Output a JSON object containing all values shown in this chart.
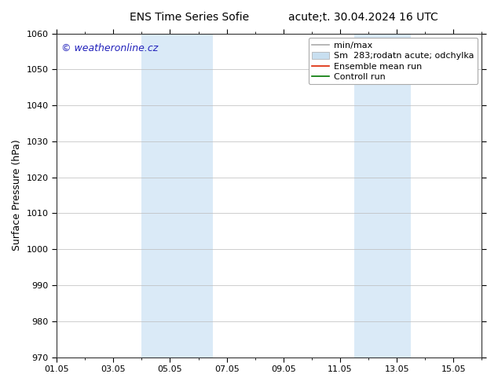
{
  "title_left": "ENS Time Series Sofie",
  "title_right": "acute;t. 30.04.2024 16 UTC",
  "ylabel": "Surface Pressure (hPa)",
  "watermark": "© weatheronline.cz",
  "ylim": [
    970,
    1060
  ],
  "yticks": [
    970,
    980,
    990,
    1000,
    1010,
    1020,
    1030,
    1040,
    1050,
    1060
  ],
  "xtick_labels": [
    "01.05",
    "03.05",
    "05.05",
    "07.05",
    "09.05",
    "11.05",
    "13.05",
    "15.05"
  ],
  "xtick_positions": [
    0,
    2,
    4,
    6,
    8,
    10,
    12,
    14
  ],
  "xlim": [
    0,
    15
  ],
  "shaded_bands": [
    {
      "start": 3.0,
      "end": 5.5,
      "color": "#daeaf7"
    },
    {
      "start": 10.5,
      "end": 12.5,
      "color": "#daeaf7"
    }
  ],
  "legend_entries": [
    {
      "label": "min/max",
      "color": "#aaaaaa",
      "lw": 1.2,
      "type": "line"
    },
    {
      "label": "Sm  283;rodatn acute; odchylka",
      "color": "#c8dff0",
      "lw": 8,
      "type": "band"
    },
    {
      "label": "Ensemble mean run",
      "color": "#dd2200",
      "lw": 1.2,
      "type": "line"
    },
    {
      "label": "Controll run",
      "color": "#007700",
      "lw": 1.2,
      "type": "line"
    }
  ],
  "bg_color": "#ffffff",
  "plot_bg_color": "#ffffff",
  "grid_color": "#bbbbbb",
  "title_fontsize": 10,
  "axis_label_fontsize": 9,
  "tick_fontsize": 8,
  "watermark_color": "#2222bb",
  "watermark_fontsize": 9,
  "legend_fontsize": 8
}
